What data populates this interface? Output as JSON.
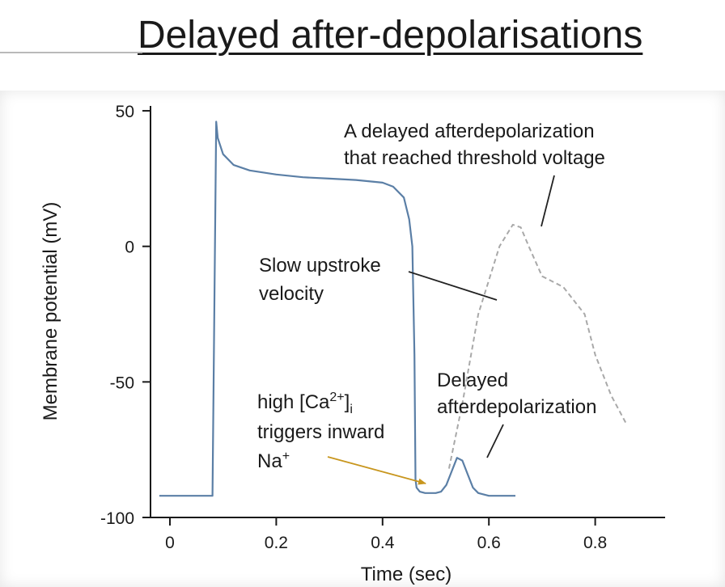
{
  "title": "Delayed after-depolarisations",
  "chart_data": {
    "type": "line",
    "xlabel": "Time (sec)",
    "ylabel": "Membrane potential (mV)",
    "xlim": [
      0,
      0.85
    ],
    "ylim": [
      -100,
      50
    ],
    "x_ticks": [
      "0",
      "0.2",
      "0.4",
      "0.6",
      "0.8"
    ],
    "y_ticks": [
      "50",
      "0",
      "-50",
      "-100"
    ],
    "series": [
      {
        "style": "solid",
        "color": "#5b7fa6",
        "x": [
          -0.02,
          0.08,
          0.087,
          0.09,
          0.1,
          0.12,
          0.15,
          0.2,
          0.25,
          0.3,
          0.35,
          0.4,
          0.42,
          0.44,
          0.45,
          0.456,
          0.46,
          0.462,
          0.464,
          0.47,
          0.48,
          0.5,
          0.51,
          0.52,
          0.53,
          0.54,
          0.55,
          0.56,
          0.57,
          0.58,
          0.6,
          0.62,
          0.65
        ],
        "y": [
          -92,
          -92,
          46,
          40,
          34,
          30,
          28,
          26.5,
          25.5,
          25,
          24.5,
          23.5,
          22,
          18,
          10,
          0,
          -40,
          -86,
          -89,
          -90.5,
          -91,
          -91,
          -90.5,
          -88,
          -83,
          -78,
          -79,
          -84,
          -89,
          -91,
          -92,
          -92,
          -92
        ]
      },
      {
        "style": "dashed",
        "color": "#a9a9a9",
        "x": [
          0.525,
          0.55,
          0.58,
          0.62,
          0.645,
          0.66,
          0.675,
          0.7,
          0.74,
          0.78,
          0.8,
          0.83,
          0.86
        ],
        "y": [
          -82,
          -58,
          -25,
          0,
          8,
          7,
          0,
          -11,
          -15,
          -25,
          -40,
          -55,
          -66
        ]
      }
    ],
    "annotations": {
      "dad_threshold": [
        "A delayed afterdepolarization",
        "that reached threshold voltage"
      ],
      "slow_upstroke": [
        "Slow upstroke",
        "velocity"
      ],
      "dad": [
        "Delayed",
        "afterdepolarization"
      ],
      "calcium": {
        "line1": "high [Ca",
        "sup": "2+",
        "close": "]",
        "sub": "i",
        "line2": "triggers inward",
        "line3_base": "Na",
        "line3_sup": "+"
      }
    },
    "colors": {
      "trace": "#5b7fa6",
      "dashed": "#a9a9a9",
      "arrow": "#c8961e",
      "axis": "#1a1a1a"
    }
  }
}
